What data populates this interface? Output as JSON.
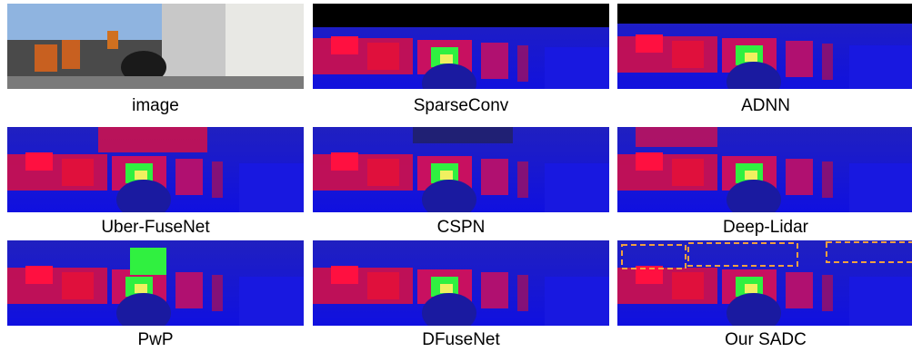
{
  "panels": [
    {
      "label": "image"
    },
    {
      "label": "SparseConv"
    },
    {
      "label": "ADNN"
    },
    {
      "label": "Uber-FuseNet"
    },
    {
      "label": "CSPN"
    },
    {
      "label": "Deep-Lidar"
    },
    {
      "label": "PwP"
    },
    {
      "label": "DFuseNet"
    },
    {
      "label": "Our SADC"
    }
  ],
  "colors": {
    "depth_far": "#1414d2",
    "depth_mid": "#c81464",
    "depth_near": "#e01030",
    "highlight_green": "#30f040",
    "highlight_yellow": "#f0f050",
    "annotation_box": "#f0a040"
  }
}
